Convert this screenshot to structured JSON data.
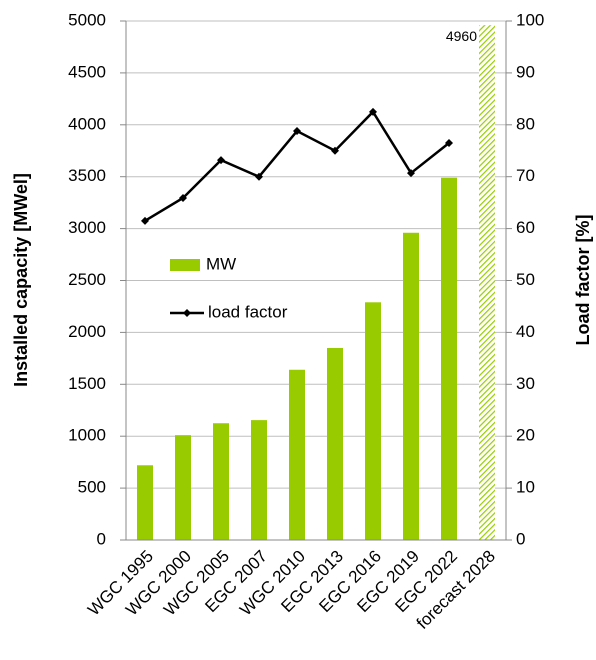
{
  "chart_data": {
    "type": "bar_line",
    "categories": [
      "WGC 1995",
      "WGC 2000",
      "WGC 2005",
      "EGC 2007",
      "WGC 2010",
      "EGC 2013",
      "EGC 2016",
      "EGC 2019",
      "EGC 2022",
      "forecast 2028"
    ],
    "series": [
      {
        "name": "MW",
        "type": "bar",
        "color": "#99cc00",
        "values": [
          720,
          1010,
          1125,
          1155,
          1640,
          1850,
          2290,
          2960,
          3490,
          4960
        ],
        "bar_styles": [
          "solid",
          "solid",
          "solid",
          "solid",
          "solid",
          "solid",
          "solid",
          "solid",
          "solid",
          "hatched"
        ]
      },
      {
        "name": "load factor",
        "type": "line",
        "axis": "y2",
        "color": "#000000",
        "values": [
          61.5,
          65.9,
          73.2,
          70,
          78.8,
          75,
          82.5,
          70.7,
          76.5,
          null
        ]
      }
    ],
    "y_label": "Installed capacity [MWel]",
    "y2_label": "Load factor [%]",
    "ylim": [
      0,
      5000
    ],
    "yticks": [
      0,
      500,
      1000,
      1500,
      2000,
      2500,
      3000,
      3500,
      4000,
      4500,
      5000
    ],
    "y2lim": [
      0,
      100
    ],
    "y2ticks": [
      0,
      10,
      20,
      30,
      40,
      50,
      60,
      70,
      80,
      90,
      100
    ],
    "grid": true,
    "legend": "left"
  }
}
